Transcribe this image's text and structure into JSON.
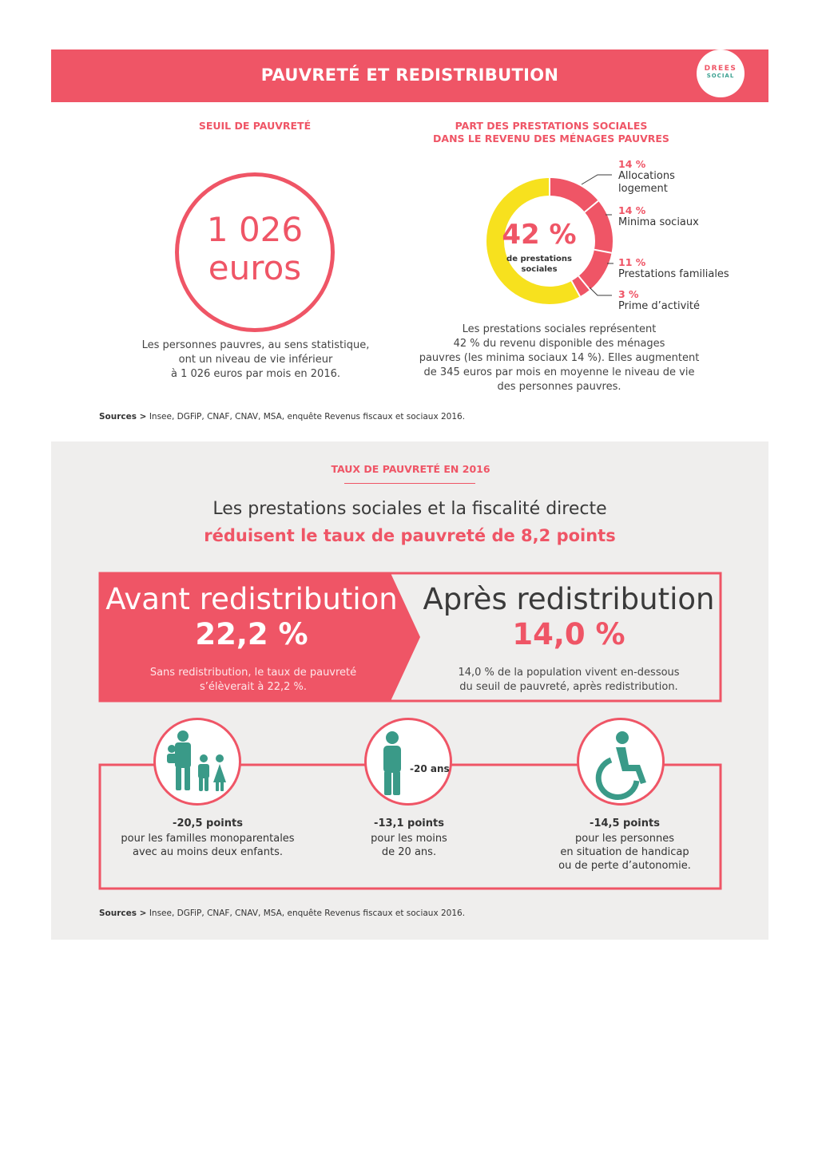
{
  "header": {
    "title": "PAUVRETÉ ET REDISTRIBUTION",
    "logo_top": "DREES",
    "logo_bottom": "SOCIAL"
  },
  "poverty_line": {
    "title": "SEUIL DE PAUVRETÉ",
    "amount": "1 026",
    "unit": "euros",
    "description": [
      "Les personnes pauvres, au sens statistique,",
      "ont un niveau de vie inférieur",
      "à 1 026 euros par mois en 2016."
    ]
  },
  "benefits_share": {
    "title_lines": [
      "PART DES PRESTATIONS SOCIALES",
      "DANS LE REVENU DES MÉNAGES PAUVRES"
    ],
    "center_value": "42 %",
    "center_label_lines": [
      "de prestations",
      "sociales"
    ],
    "legend": [
      {
        "pct": "14 %",
        "label_lines": [
          "Allocations",
          "logement"
        ]
      },
      {
        "pct": "14 %",
        "label_lines": [
          "Minima sociaux"
        ]
      },
      {
        "pct": "11 %",
        "label_lines": [
          "Prestations familiales"
        ]
      },
      {
        "pct": "3 %",
        "label_lines": [
          "Prime d’activité"
        ]
      }
    ],
    "description": [
      "Les prestations sociales représentent",
      "42 % du revenu disponible des ménages",
      "pauvres (les minima sociaux 14 %). Elles augmentent",
      "de 345 euros par mois en moyenne le niveau de vie",
      "des personnes pauvres."
    ]
  },
  "chart_data": {
    "type": "pie",
    "categories": [
      "Allocations logement",
      "Minima sociaux",
      "Prestations familiales",
      "Prime d’activité"
    ],
    "values": [
      14,
      14,
      11,
      3
    ],
    "total_pct": 42,
    "colors": {
      "segments": "#ef5566",
      "remainder": "#f7e11e"
    }
  },
  "sources_label": "Sources >",
  "sources_top": "Insee, DGFiP, CNAF, CNAV, MSA, enquête Revenus fiscaux et sociaux 2016.",
  "rate": {
    "title": "TAUX DE PAUVRETÉ EN 2016",
    "headline_1": "Les prestations sociales et la fiscalité directe",
    "headline_2": "réduisent le taux de pauvreté de 8,2 points"
  },
  "before": {
    "label": "Avant redistribution",
    "value": "22,2 %",
    "desc_lines": [
      "Sans redistribution, le taux de pauvreté",
      "s’élèverait à 22,2 %."
    ]
  },
  "after": {
    "label": "Après redistribution",
    "value": "14,0 %",
    "desc_lines": [
      "14,0 % de la population vivent en-dessous",
      "du seuil de pauvreté, après redistribution."
    ]
  },
  "groups": [
    {
      "icon": "family-icon",
      "points": "-20,5 points",
      "desc_lines": [
        "pour les familles monoparentales",
        "avec au moins deux enfants."
      ]
    },
    {
      "icon": "person-icon",
      "tag": "-20 ans",
      "points": "-13,1 points",
      "desc_lines": [
        "pour les moins",
        "de 20 ans."
      ]
    },
    {
      "icon": "wheelchair-icon",
      "points": "-14,5 points",
      "desc_lines": [
        "pour les personnes",
        "en situation de handicap",
        "ou de perte d’autonomie."
      ]
    }
  ],
  "sources_bottom": "Insee, DGFiP, CNAF, CNAV, MSA, enquête Revenus fiscaux et sociaux 2016.",
  "colors": {
    "accent": "#ef5566",
    "teal": "#3a9a88",
    "yellow": "#f7e11e",
    "panel": "#efeeed"
  }
}
